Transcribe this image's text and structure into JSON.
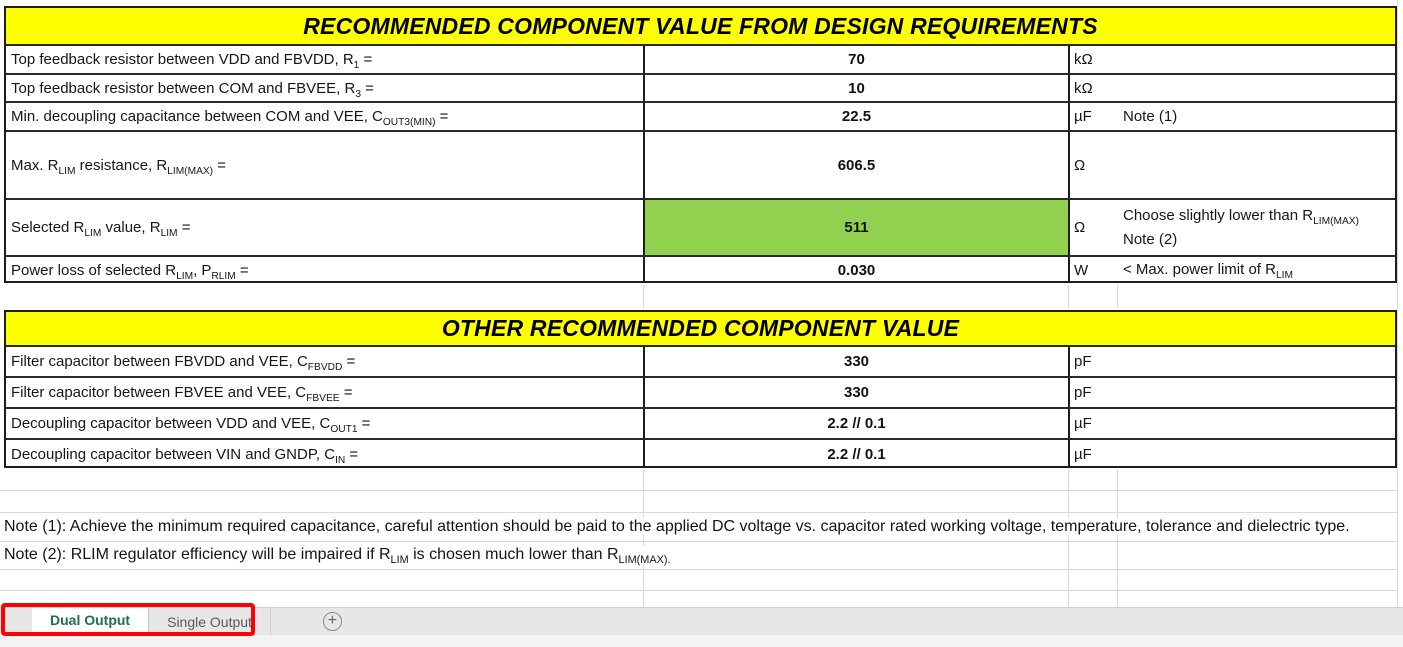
{
  "colors": {
    "section_header_bg": "#FFFF00",
    "selected_cell_bg": "#92D050",
    "active_tab_green": "#1E7145",
    "annotation_red": "#FC0007"
  },
  "section1": {
    "title": "RECOMMENDED COMPONENT VALUE FROM DESIGN REQUIREMENTS",
    "rows": [
      {
        "label": [
          {
            "t": "Top feedback resistor between VDD and FBVDD, R"
          },
          {
            "s": "1"
          },
          {
            "t": " ="
          }
        ],
        "value": "70",
        "unit": "kΩ",
        "note": []
      },
      {
        "label": [
          {
            "t": "Top feedback resistor between COM and FBVEE, R"
          },
          {
            "s": "3"
          },
          {
            "t": " ="
          }
        ],
        "value": "10",
        "unit": "kΩ",
        "note": []
      },
      {
        "label": [
          {
            "t": "Min. decoupling capacitance between COM and VEE, C"
          },
          {
            "s": "OUT3(MIN)"
          },
          {
            "t": " ="
          }
        ],
        "value": "22.5",
        "unit": "µF",
        "note": [
          [
            {
              "t": "Note (1)"
            }
          ]
        ]
      },
      {
        "label": [
          {
            "t": "Max. R"
          },
          {
            "s": "LIM"
          },
          {
            "t": " resistance, R"
          },
          {
            "s": "LIM(MAX)"
          },
          {
            "t": " ="
          }
        ],
        "value": "606.5",
        "unit": "Ω",
        "note": []
      },
      {
        "label": [
          {
            "t": "Selected R"
          },
          {
            "s": "LIM"
          },
          {
            "t": " value, R"
          },
          {
            "s": "LIM"
          },
          {
            "t": " ="
          }
        ],
        "value": "511",
        "unit": "Ω",
        "selected": true,
        "note": [
          [
            {
              "t": "Choose slightly lower than R"
            },
            {
              "s": "LIM(MAX)"
            }
          ],
          [
            {
              "t": "Note (2)"
            }
          ]
        ]
      },
      {
        "label": [
          {
            "t": "Power loss of selected R"
          },
          {
            "s": "LIM"
          },
          {
            "t": ", P"
          },
          {
            "s": "RLIM"
          },
          {
            "t": " ="
          }
        ],
        "value": "0.030",
        "unit": "W",
        "note": [
          [
            {
              "t": "< Max. power limit of R"
            },
            {
              "s": "LIM"
            }
          ]
        ]
      }
    ]
  },
  "section2": {
    "title": "OTHER RECOMMENDED COMPONENT VALUE",
    "rows": [
      {
        "label": [
          {
            "t": "Filter capacitor between FBVDD and VEE, C"
          },
          {
            "s": "FBVDD"
          },
          {
            "t": " ="
          }
        ],
        "value": "330",
        "unit": "pF",
        "note": []
      },
      {
        "label": [
          {
            "t": "Filter capacitor between FBVEE and VEE, C"
          },
          {
            "s": "FBVEE"
          },
          {
            "t": " ="
          }
        ],
        "value": "330",
        "unit": "pF",
        "note": []
      },
      {
        "label": [
          {
            "t": "Decoupling capacitor between VDD and VEE, C"
          },
          {
            "s": "OUT1"
          },
          {
            "t": " ="
          }
        ],
        "value": "2.2 // 0.1",
        "unit": "µF",
        "note": []
      },
      {
        "label": [
          {
            "t": "Decoupling capacitor between VIN and GNDP, C"
          },
          {
            "s": "IN"
          },
          {
            "t": " ="
          }
        ],
        "value": "2.2 // 0.1",
        "unit": "µF",
        "note": []
      }
    ]
  },
  "footnotes": [
    [
      {
        "t": "Note (1): Achieve the minimum required capacitance, careful attention should be paid to the applied DC voltage vs. capacitor rated working voltage, temperature, tolerance and dielectric type."
      }
    ],
    [
      {
        "t": "Note (2): RLIM regulator efficiency will be impaired if R"
      },
      {
        "s": "LIM"
      },
      {
        "t": " is chosen much lower than R"
      },
      {
        "s": "LIM(MAX)."
      }
    ]
  ],
  "sheet_tabs": {
    "tabs": [
      {
        "label": "Dual Output",
        "active": true
      },
      {
        "label": "Single Output",
        "active": false
      }
    ],
    "add_label": "+"
  }
}
